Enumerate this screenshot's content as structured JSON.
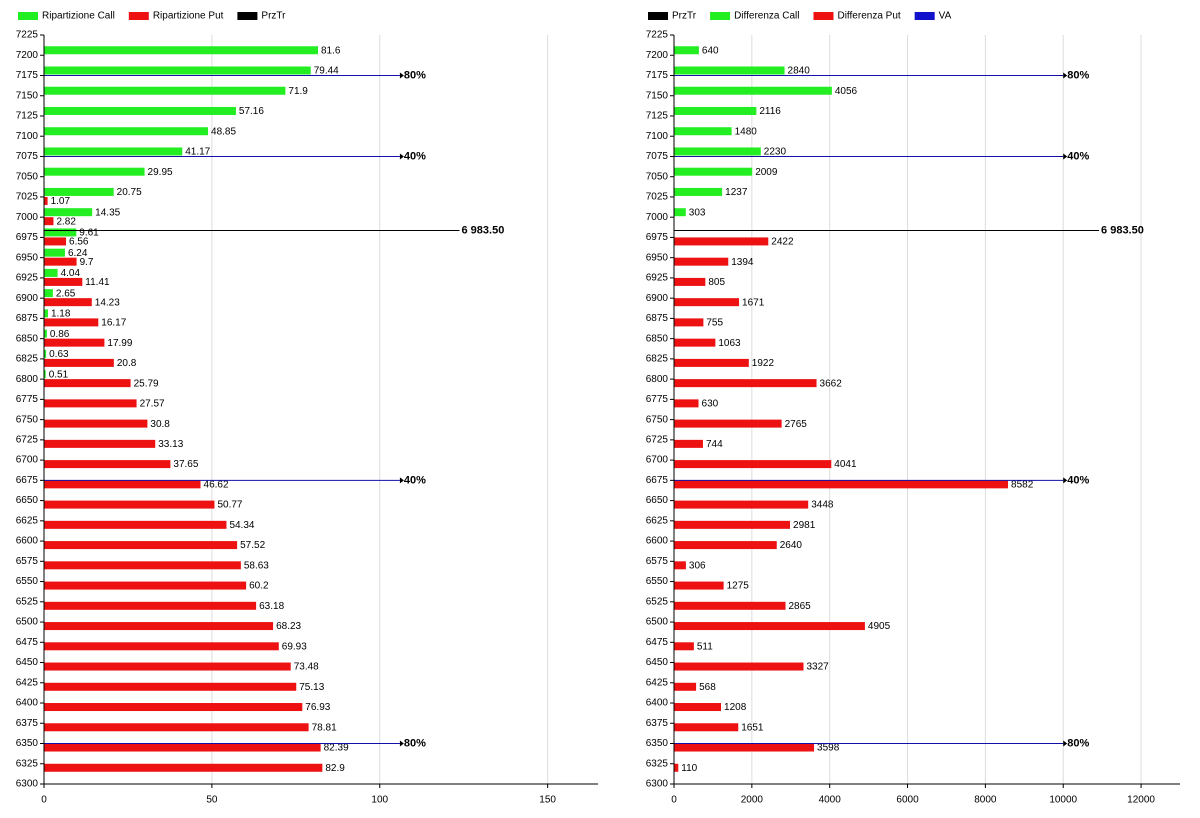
{
  "chart_data": [
    {
      "type": "bar",
      "orientation": "horizontal",
      "legend": [
        "Ripartizione Call",
        "Ripartizione Put",
        "PrzTr"
      ],
      "legend_colors": [
        "#22ee22",
        "#ee1111",
        "#000000"
      ],
      "y": [
        7200,
        7175,
        7150,
        7125,
        7100,
        7075,
        7050,
        7025,
        7000,
        6975,
        6950,
        6925,
        6900,
        6875,
        6850,
        6825,
        6800,
        6775,
        6750,
        6725,
        6700,
        6675,
        6650,
        6625,
        6600,
        6575,
        6550,
        6525,
        6500,
        6475,
        6450,
        6425,
        6400,
        6375,
        6350,
        6325
      ],
      "series": [
        {
          "name": "Ripartizione Call",
          "color": "#22ee22",
          "values": [
            81.6,
            79.44,
            71.9,
            57.16,
            48.85,
            41.17,
            29.95,
            20.75,
            14.35,
            9.61,
            6.24,
            4.04,
            2.65,
            1.18,
            0.86,
            0.63,
            0.51,
            null,
            null,
            null,
            null,
            null,
            null,
            null,
            null,
            null,
            null,
            null,
            null,
            null,
            null,
            null,
            null,
            null,
            null,
            null
          ]
        },
        {
          "name": "Ripartizione Put",
          "color": "#ee1111",
          "values": [
            null,
            null,
            null,
            null,
            null,
            null,
            null,
            1.07,
            2.82,
            6.56,
            9.7,
            11.41,
            14.23,
            16.17,
            17.99,
            20.8,
            25.79,
            27.57,
            30.8,
            33.13,
            37.65,
            46.62,
            50.77,
            54.34,
            57.52,
            58.63,
            60.2,
            63.18,
            68.23,
            69.93,
            73.48,
            75.13,
            76.93,
            78.81,
            82.39,
            82.9
          ]
        }
      ],
      "przTr": {
        "value": 6983.5,
        "label": "6 983.50",
        "color": "#000000"
      },
      "va": {
        "color": "#1111aa",
        "levels": [
          7175,
          7075,
          6675,
          6350
        ],
        "labels": [
          "80%",
          "40%",
          "40%",
          "80%"
        ],
        "end": 106
      },
      "xlim": [
        0,
        165
      ],
      "xticks": [
        0,
        50,
        100,
        150
      ],
      "ylim": [
        6300,
        7225
      ],
      "yticks": [
        7225,
        7200,
        7175,
        7150,
        7125,
        7100,
        7075,
        7050,
        7025,
        7000,
        6975,
        6950,
        6925,
        6900,
        6875,
        6850,
        6825,
        6800,
        6775,
        6750,
        6725,
        6700,
        6675,
        6650,
        6625,
        6600,
        6575,
        6550,
        6525,
        6500,
        6475,
        6450,
        6425,
        6400,
        6375,
        6350,
        6325,
        6300
      ],
      "grid": true
    },
    {
      "type": "bar",
      "orientation": "horizontal",
      "legend": [
        "PrzTr",
        "Differenza Call",
        "Differenza Put",
        "VA"
      ],
      "legend_colors": [
        "#000000",
        "#22ee22",
        "#ee1111",
        "#1111cc"
      ],
      "y": [
        7200,
        7175,
        7150,
        7125,
        7100,
        7075,
        7050,
        7025,
        7000,
        6975,
        6950,
        6925,
        6900,
        6875,
        6850,
        6825,
        6800,
        6775,
        6750,
        6725,
        6700,
        6675,
        6650,
        6625,
        6600,
        6575,
        6550,
        6525,
        6500,
        6475,
        6450,
        6425,
        6400,
        6375,
        6350,
        6325
      ],
      "series": [
        {
          "name": "Differenza Call",
          "color": "#22ee22",
          "values": [
            640,
            2840,
            4056,
            2116,
            1480,
            2230,
            2009,
            1237,
            303,
            null,
            null,
            null,
            null,
            null,
            null,
            null,
            null,
            null,
            null,
            null,
            null,
            null,
            null,
            null,
            null,
            null,
            null,
            null,
            null,
            null,
            null,
            null,
            null,
            null,
            null,
            null
          ]
        },
        {
          "name": "Differenza Put",
          "color": "#ee1111",
          "values": [
            null,
            null,
            null,
            null,
            null,
            null,
            null,
            null,
            null,
            2422,
            1394,
            805,
            1671,
            755,
            1063,
            1922,
            3662,
            630,
            2765,
            744,
            4041,
            8582,
            3448,
            2981,
            2640,
            306,
            1275,
            2865,
            4905,
            511,
            3327,
            568,
            1208,
            1651,
            3598,
            110
          ]
        }
      ],
      "przTr": {
        "value": 6983.5,
        "label": "6 983.50",
        "color": "#000000"
      },
      "va": {
        "color": "#1111aa",
        "levels": [
          7175,
          7075,
          6675,
          6350
        ],
        "labels": [
          "80%",
          "40%",
          "40%",
          "80%"
        ],
        "end": 10000
      },
      "xlim": [
        0,
        13000
      ],
      "xticks": [
        0,
        2000,
        4000,
        6000,
        8000,
        10000,
        12000
      ],
      "ylim": [
        6300,
        7225
      ],
      "yticks": [
        7225,
        7200,
        7175,
        7150,
        7125,
        7100,
        7075,
        7050,
        7025,
        7000,
        6975,
        6950,
        6925,
        6900,
        6875,
        6850,
        6825,
        6800,
        6775,
        6750,
        6725,
        6700,
        6675,
        6650,
        6625,
        6600,
        6575,
        6550,
        6525,
        6500,
        6475,
        6450,
        6425,
        6400,
        6375,
        6350,
        6325,
        6300
      ],
      "grid": true
    }
  ]
}
